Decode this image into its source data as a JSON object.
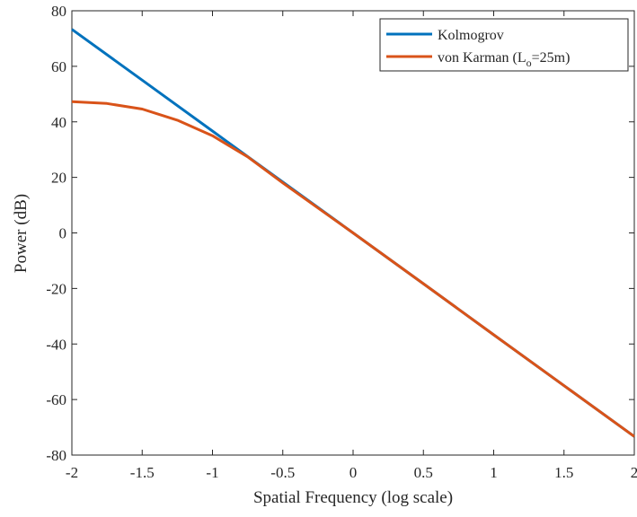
{
  "chart_data": {
    "type": "line",
    "title": "",
    "xlabel": "Spatial Frequency (log scale)",
    "ylabel": "Power (dB)",
    "xlim": [
      -2,
      2
    ],
    "ylim": [
      -80,
      80
    ],
    "xticks": [
      -2,
      -1.5,
      -1,
      -0.5,
      0,
      0.5,
      1,
      1.5,
      2
    ],
    "yticks": [
      -80,
      -60,
      -40,
      -20,
      0,
      20,
      40,
      60,
      80
    ],
    "xtick_labels": [
      "-2",
      "-1.5",
      "-1",
      "-0.5",
      "0",
      "0.5",
      "1",
      "1.5",
      "2"
    ],
    "ytick_labels": [
      "-80",
      "-60",
      "-40",
      "-20",
      "0",
      "20",
      "40",
      "60",
      "80"
    ],
    "grid": false,
    "legend_position": "top-right",
    "series": [
      {
        "name": "Kolmogrov",
        "color": "#0072BD",
        "x": [
          -2,
          -1.5,
          -1,
          -0.5,
          0,
          0.5,
          1,
          1.5,
          2
        ],
        "y": [
          73.3,
          55.0,
          36.7,
          18.3,
          0,
          -18.3,
          -36.7,
          -55.0,
          -73.3
        ]
      },
      {
        "name_main": "von Karman (L",
        "name_sub": "o",
        "name_tail": "=25m)",
        "color": "#D95319",
        "x": [
          -2,
          -1.75,
          -1.5,
          -1.25,
          -1,
          -0.75,
          -0.5,
          -0.25,
          0,
          0.5,
          1,
          1.5,
          2
        ],
        "y": [
          47.3,
          46.6,
          44.6,
          40.6,
          35.0,
          27.4,
          18.0,
          9.0,
          0,
          -18.3,
          -36.7,
          -55.0,
          -73.3
        ]
      }
    ]
  }
}
